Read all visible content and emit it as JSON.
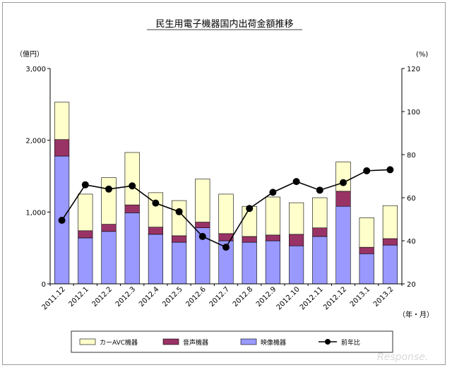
{
  "chart_data": {
    "type": "bar",
    "stacked": true,
    "title": "民生用電子機器国内出荷金額推移",
    "y_unit_left": "（億円）",
    "y_unit_right": "(%)",
    "x_unit": "（年・月）",
    "categories": [
      "2011.12",
      "2012.1",
      "2012.2",
      "2012.3",
      "2012.4",
      "2012.5",
      "2012.6",
      "2012.7",
      "2012.8",
      "2012.9",
      "2012.10",
      "2012.11",
      "2012.12",
      "2013.1",
      "2013.2"
    ],
    "ylim_left": [
      0,
      3000
    ],
    "yticks_left": [
      0,
      1000,
      2000,
      3000
    ],
    "ytick_labels_left": [
      "0",
      "1,000",
      "2,000",
      "3,000"
    ],
    "ylim_right": [
      20,
      120
    ],
    "yticks_right": [
      20,
      40,
      60,
      80,
      100,
      120
    ],
    "ytick_labels_right": [
      "20",
      "40",
      "60",
      "80",
      "100",
      "120"
    ],
    "series": [
      {
        "name": "映像機器",
        "color": "#9999ff",
        "values": [
          1780,
          640,
          730,
          990,
          690,
          580,
          780,
          600,
          580,
          600,
          530,
          660,
          1080,
          420,
          540
        ]
      },
      {
        "name": "音声機器",
        "color": "#993366",
        "values": [
          230,
          100,
          100,
          110,
          100,
          90,
          80,
          100,
          80,
          80,
          160,
          120,
          210,
          90,
          90
        ]
      },
      {
        "name": "カーAVC機器",
        "color": "#ffffcc",
        "values": [
          520,
          510,
          650,
          730,
          480,
          490,
          600,
          550,
          420,
          530,
          440,
          420,
          410,
          410,
          460
        ]
      }
    ],
    "line_series": {
      "name": "前年比",
      "axis": "right",
      "color": "#000000",
      "values": [
        49.5,
        66,
        64,
        65.5,
        57.5,
        53.5,
        42,
        37,
        55,
        62.5,
        67.5,
        63.5,
        67,
        72.5,
        73
      ]
    },
    "legend_position": "bottom",
    "grid": false
  },
  "watermark": "Response."
}
